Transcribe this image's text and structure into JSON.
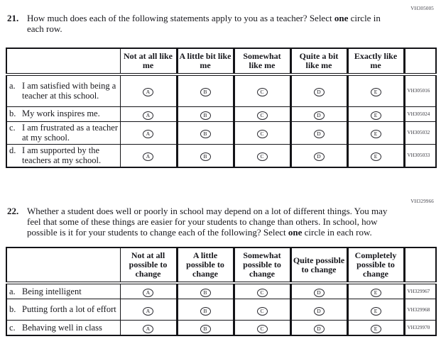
{
  "questions": [
    {
      "number": "21.",
      "code": "VH305005",
      "prompt": {
        "before": "How much does each of the following statements apply to you as a teacher? Select ",
        "bold_word": "one",
        "after": " circle in each row."
      },
      "table": {
        "columns": [
          "Not at all like me",
          "A little bit like me",
          "Somewhat like me",
          "Quite a bit like me",
          "Exactly like me"
        ],
        "options": [
          "A",
          "B",
          "C",
          "D",
          "E"
        ],
        "rows": [
          {
            "letter": "a.",
            "text": "I am satisfied with being a teacher at this school.",
            "code": "VH305016"
          },
          {
            "letter": "b.",
            "text": "My work inspires me.",
            "code": "VH305024"
          },
          {
            "letter": "c.",
            "text": "I am frustrated as a teacher at my school.",
            "code": "VH305032"
          },
          {
            "letter": "d.",
            "text": "I am supported by the teachers at my school.",
            "code": "VH305033"
          }
        ]
      }
    },
    {
      "number": "22.",
      "code": "VH329966",
      "prompt": {
        "before": "Whether a student does well or poorly in school may depend on a lot of different things. You may feel that some of these things are easier for your students to change than others. In school, how possible is it for your students to change each of the following? Select ",
        "bold_word": "one",
        "after": " circle in each row."
      },
      "table": {
        "columns": [
          "Not at all possible to change",
          "A little possible to change",
          "Somewhat possible to change",
          "Quite possible to change",
          "Completely possible to change"
        ],
        "options": [
          "A",
          "B",
          "C",
          "D",
          "E"
        ],
        "rows": [
          {
            "letter": "a.",
            "text": "Being intelligent",
            "code": "VH329967"
          },
          {
            "letter": "b.",
            "text": "Putting forth a lot of effort",
            "code": "VH329968"
          },
          {
            "letter": "c.",
            "text": "Behaving well in class",
            "code": "VH329970"
          }
        ]
      }
    }
  ]
}
